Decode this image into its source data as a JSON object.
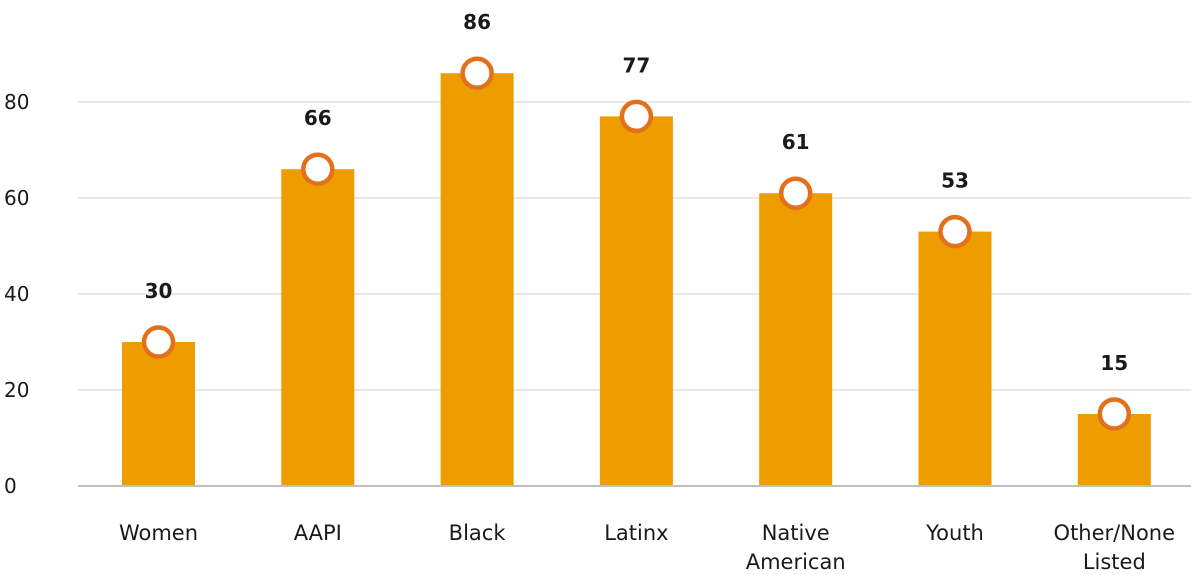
{
  "chart_data": {
    "type": "bar",
    "categories": [
      [
        "Women"
      ],
      [
        "AAPI"
      ],
      [
        "Black"
      ],
      [
        "Latinx"
      ],
      [
        "Native",
        "American"
      ],
      [
        "Youth"
      ],
      [
        "Other/None",
        "Listed"
      ]
    ],
    "values": [
      30,
      66,
      86,
      77,
      61,
      53,
      15
    ],
    "data_labels": [
      "30",
      "66",
      "86",
      "77",
      "61",
      "53",
      "15"
    ],
    "ylim": [
      0,
      90
    ],
    "yticks": [
      0,
      20,
      40,
      60,
      80
    ],
    "ytick_labels": [
      "0",
      "20",
      "40",
      "60",
      "80"
    ],
    "grid": true,
    "markers": "circle",
    "colors": {
      "bar": "#EE9D00",
      "marker_stroke": "#E3701B",
      "marker_fill": "#FFFFFF",
      "grid": "#D0D0D0",
      "axis": "#BFBFBF"
    }
  }
}
